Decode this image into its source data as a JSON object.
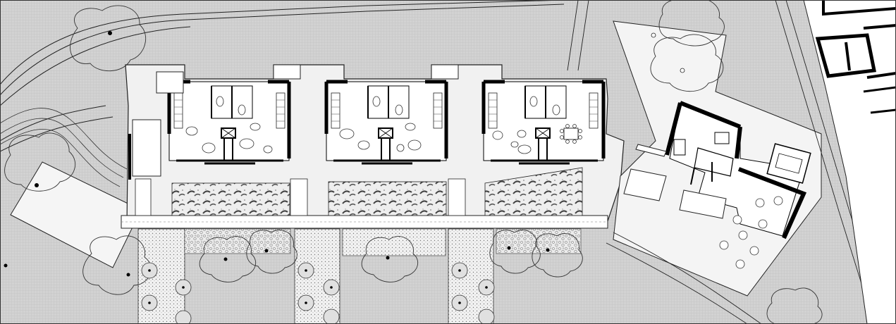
{
  "drawing": {
    "kind": "architectural site plan",
    "colors": {
      "background": "#ffffff",
      "ground": "#d2d2d2",
      "ground_hatch": "#b9b9b9",
      "line": "#222222",
      "wall": "#000000",
      "paving": "#ebebeb",
      "gravel": "#f3f3f3",
      "planting": "#c9c9c9"
    }
  }
}
